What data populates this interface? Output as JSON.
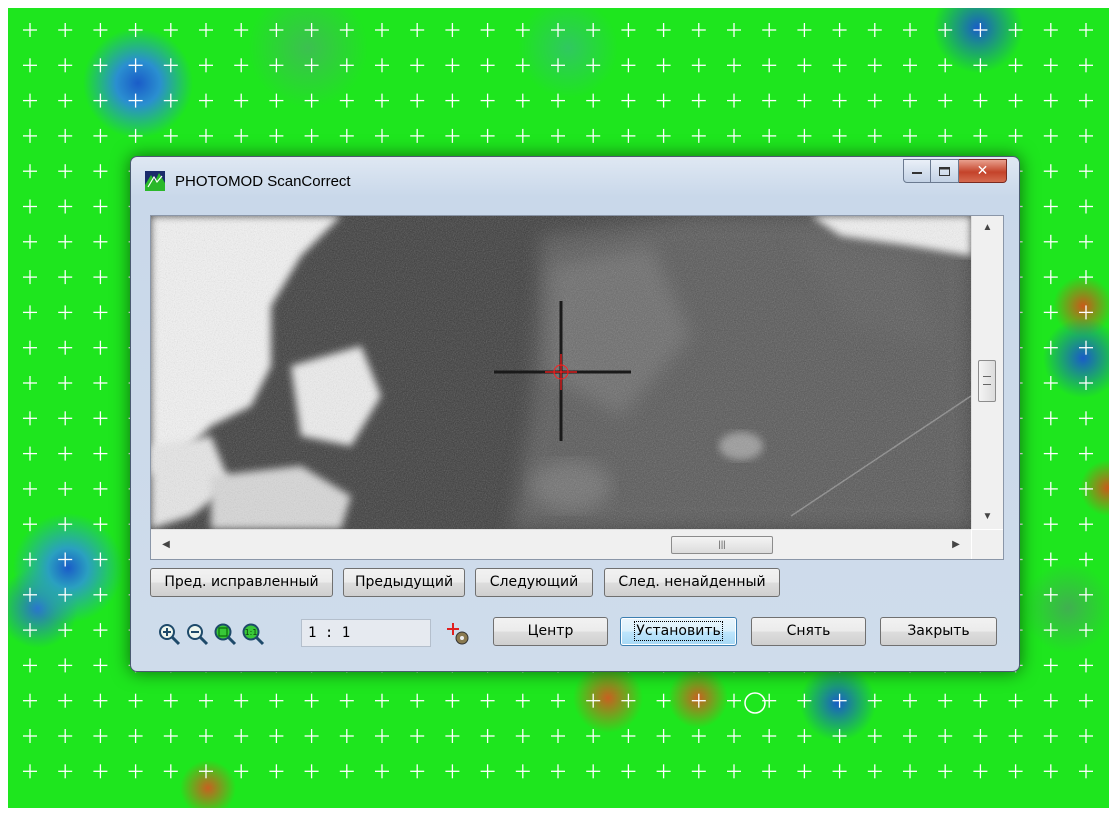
{
  "window": {
    "title": "PHOTOMOD ScanCorrect"
  },
  "nav_buttons": {
    "prev_fixed": "Пред. исправленный",
    "previous": "Предыдущий",
    "next": "Следующий",
    "next_not_found": "След. ненайденный"
  },
  "toolbar": {
    "zoom_level": "1 : 1",
    "center_label": "Центр",
    "set_label": "Установить",
    "remove_label": "Снять",
    "close_label": "Закрыть"
  },
  "icons": {
    "zoom_in": "zoom-in-icon",
    "zoom_out": "zoom-out-icon",
    "zoom_fit": "zoom-fit-icon",
    "zoom_actual": "zoom-actual-icon",
    "settings": "cross-settings-icon"
  },
  "colors": {
    "heatmap_green": "#1ee61e",
    "heatmap_blue": "#1a5cc8",
    "heatmap_orange": "#c85a1a",
    "grid_cross": "#ffffff",
    "target_cross": "#ff2020"
  }
}
